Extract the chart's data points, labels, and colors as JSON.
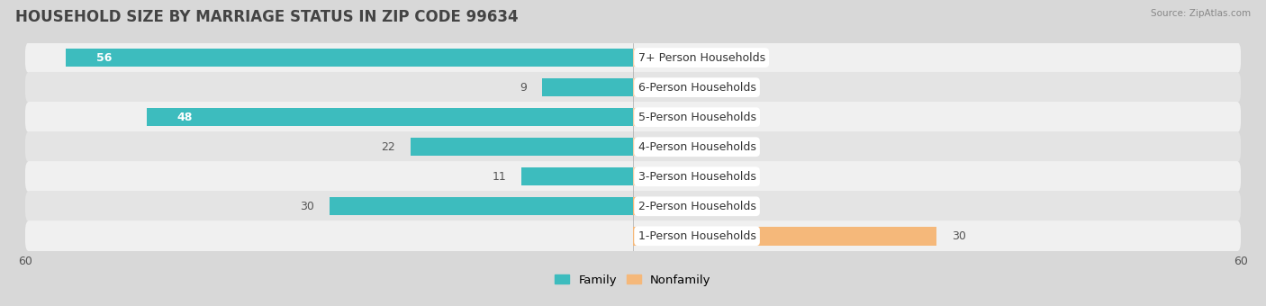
{
  "title": "HOUSEHOLD SIZE BY MARRIAGE STATUS IN ZIP CODE 99634",
  "source": "Source: ZipAtlas.com",
  "categories": [
    "7+ Person Households",
    "6-Person Households",
    "5-Person Households",
    "4-Person Households",
    "3-Person Households",
    "2-Person Households",
    "1-Person Households"
  ],
  "family_values": [
    56,
    9,
    48,
    22,
    11,
    30,
    0
  ],
  "nonfamily_values": [
    0,
    0,
    0,
    0,
    0,
    4,
    30
  ],
  "family_color": "#3dbcbe",
  "nonfamily_color": "#f5b87a",
  "nonfamily_stub_color": "#f2d0aa",
  "xlim": [
    -60,
    60
  ],
  "bar_height": 0.62,
  "label_fontsize": 9,
  "title_fontsize": 12,
  "value_fontsize": 9
}
